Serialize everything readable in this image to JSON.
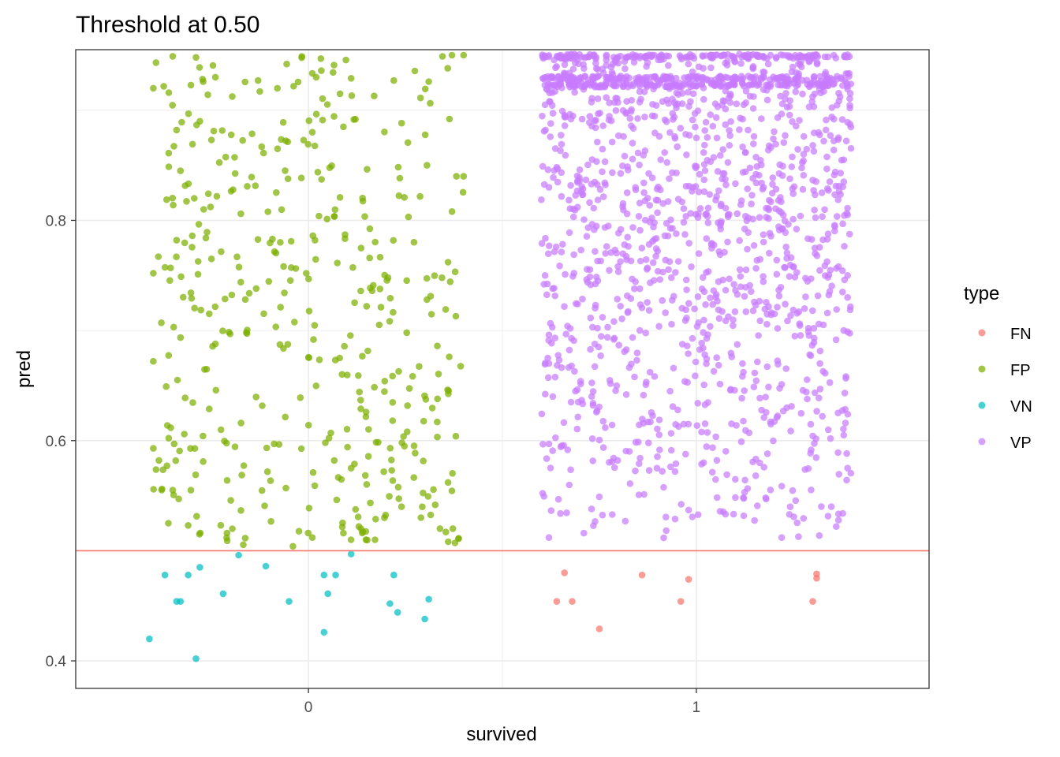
{
  "chart_data": {
    "type": "scatter",
    "title": "Threshold at 0.50",
    "xlabel": "survived",
    "ylabel": "pred",
    "x_categories": [
      "0",
      "1"
    ],
    "xlim": [
      -0.6,
      1.6
    ],
    "ylim": [
      0.375,
      0.955
    ],
    "y_ticks": [
      0.4,
      0.6,
      0.8
    ],
    "y_tick_labels": [
      "0.4",
      "0.6",
      "0.8"
    ],
    "threshold": 0.5,
    "threshold_color": "#F8766D",
    "jitter_width": 0.4,
    "grid": true,
    "theme": "bw",
    "legend": {
      "title": "type",
      "position": "right",
      "entries": [
        {
          "label": "FN",
          "color": "#F8766D"
        },
        {
          "label": "FP",
          "color": "#7CAE00"
        },
        {
          "label": "VN",
          "color": "#00BFC4"
        },
        {
          "label": "VP",
          "color": "#C77CFF"
        }
      ]
    },
    "series": [
      {
        "name": "FN",
        "color": "#F8766D",
        "points": [
          [
            0.66,
            0.48
          ],
          [
            0.64,
            0.454
          ],
          [
            0.68,
            0.454
          ],
          [
            0.75,
            0.429
          ],
          [
            0.86,
            0.478
          ],
          [
            0.98,
            0.474
          ],
          [
            0.96,
            0.454
          ],
          [
            1.31,
            0.475
          ],
          [
            1.31,
            0.479
          ],
          [
            1.3,
            0.454
          ]
        ]
      },
      {
        "name": "VN",
        "color": "#00BFC4",
        "points": [
          [
            -0.37,
            0.478
          ],
          [
            -0.33,
            0.454
          ],
          [
            -0.34,
            0.454
          ],
          [
            -0.31,
            0.478
          ],
          [
            -0.28,
            0.485
          ],
          [
            -0.22,
            0.461
          ],
          [
            -0.18,
            0.496
          ],
          [
            -0.11,
            0.486
          ],
          [
            -0.05,
            0.454
          ],
          [
            0.04,
            0.478
          ],
          [
            0.07,
            0.478
          ],
          [
            0.05,
            0.461
          ],
          [
            0.11,
            0.497
          ],
          [
            0.04,
            0.426
          ],
          [
            0.21,
            0.452
          ],
          [
            0.23,
            0.444
          ],
          [
            0.22,
            0.478
          ],
          [
            0.31,
            0.456
          ],
          [
            0.3,
            0.438
          ],
          [
            -0.41,
            0.42
          ],
          [
            -0.29,
            0.402
          ]
        ]
      },
      {
        "name": "FP",
        "color": "#7CAE00",
        "density": 400,
        "x_center": 0,
        "y_range": [
          0.505,
          0.95
        ],
        "heavy_rows": [],
        "anchor_points": [
          [
            -0.35,
            0.949
          ],
          [
            -0.29,
            0.948
          ],
          [
            -0.4,
            0.92
          ],
          [
            -0.36,
            0.916
          ],
          [
            -0.24,
            0.93
          ],
          [
            -0.13,
            0.927
          ],
          [
            -0.08,
            0.92
          ],
          [
            0.02,
            0.93
          ],
          [
            0.11,
            0.929
          ],
          [
            0.22,
            0.927
          ],
          [
            0.31,
            0.926
          ],
          [
            0.37,
            0.95
          ],
          [
            0.4,
            0.95
          ],
          [
            -0.34,
            0.882
          ],
          [
            -0.25,
            0.873
          ],
          [
            -0.28,
            0.89
          ],
          [
            0.01,
            0.88
          ],
          [
            0.09,
            0.885
          ],
          [
            -0.33,
            0.845
          ],
          [
            0.4,
            0.84
          ],
          [
            -0.27,
            0.81
          ],
          [
            0.37,
            0.808
          ],
          [
            -0.34,
            0.782
          ],
          [
            0.36,
            0.762
          ],
          [
            -0.4,
            0.752
          ],
          [
            0.38,
            0.713
          ],
          [
            -0.4,
            0.672
          ],
          [
            0.38,
            0.604
          ],
          [
            -0.4,
            0.593
          ],
          [
            -0.35,
            0.555
          ],
          [
            -0.31,
            0.523
          ],
          [
            -0.04,
            0.504
          ],
          [
            0.01,
            0.512
          ],
          [
            -0.21,
            0.516
          ],
          [
            0.09,
            0.516
          ],
          [
            0.13,
            0.522
          ],
          [
            0.24,
            0.54
          ],
          [
            0.29,
            0.53
          ],
          [
            0.36,
            0.562
          ],
          [
            0.11,
            0.575
          ]
        ]
      },
      {
        "name": "VP",
        "color": "#C77CFF",
        "density": 1700,
        "x_center": 1,
        "y_range": [
          0.51,
          0.95
        ],
        "heavy_rows": [
          0.949,
          0.929,
          0.923
        ],
        "anchor_points": [
          [
            0.62,
            0.512
          ],
          [
            0.71,
            0.516
          ],
          [
            1.22,
            0.512
          ],
          [
            1.24,
            0.533
          ],
          [
            0.73,
            0.538
          ],
          [
            0.98,
            0.537
          ],
          [
            1.18,
            0.547
          ],
          [
            0.62,
            0.597
          ],
          [
            1.39,
            0.575
          ],
          [
            1.38,
            0.605
          ],
          [
            0.63,
            0.64
          ],
          [
            1.38,
            0.7
          ],
          [
            1.39,
            0.73
          ],
          [
            1.39,
            0.75
          ],
          [
            1.39,
            0.805
          ],
          [
            1.38,
            0.835
          ],
          [
            1.38,
            0.855
          ],
          [
            1.39,
            0.889
          ],
          [
            0.61,
            0.905
          ],
          [
            0.62,
            0.83
          ],
          [
            0.61,
            0.75
          ],
          [
            0.62,
            0.696
          ],
          [
            0.62,
            0.67
          ]
        ]
      }
    ]
  }
}
